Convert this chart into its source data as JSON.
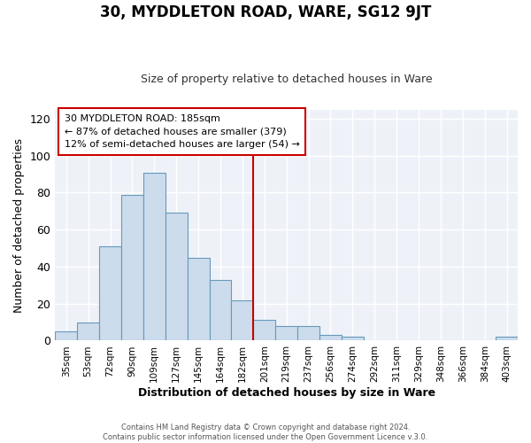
{
  "title": "30, MYDDLETON ROAD, WARE, SG12 9JT",
  "subtitle": "Size of property relative to detached houses in Ware",
  "xlabel": "Distribution of detached houses by size in Ware",
  "ylabel": "Number of detached properties",
  "bar_labels": [
    "35sqm",
    "53sqm",
    "72sqm",
    "90sqm",
    "109sqm",
    "127sqm",
    "145sqm",
    "164sqm",
    "182sqm",
    "201sqm",
    "219sqm",
    "237sqm",
    "256sqm",
    "274sqm",
    "292sqm",
    "311sqm",
    "329sqm",
    "348sqm",
    "366sqm",
    "384sqm",
    "403sqm"
  ],
  "bar_heights": [
    5,
    10,
    51,
    79,
    91,
    69,
    45,
    33,
    22,
    11,
    8,
    8,
    3,
    2,
    0,
    0,
    0,
    0,
    0,
    0,
    2
  ],
  "bar_color": "#ccdcec",
  "bar_edge_color": "#6699bb",
  "vline_color": "#cc0000",
  "annotation_title": "30 MYDDLETON ROAD: 185sqm",
  "annotation_line1": "← 87% of detached houses are smaller (379)",
  "annotation_line2": "12% of semi-detached houses are larger (54) →",
  "annotation_box_color": "#ffffff",
  "annotation_box_edge": "#cc0000",
  "ylim": [
    0,
    125
  ],
  "yticks": [
    0,
    20,
    40,
    60,
    80,
    100,
    120
  ],
  "footer1": "Contains HM Land Registry data © Crown copyright and database right 2024.",
  "footer2": "Contains public sector information licensed under the Open Government Licence v.3.0."
}
